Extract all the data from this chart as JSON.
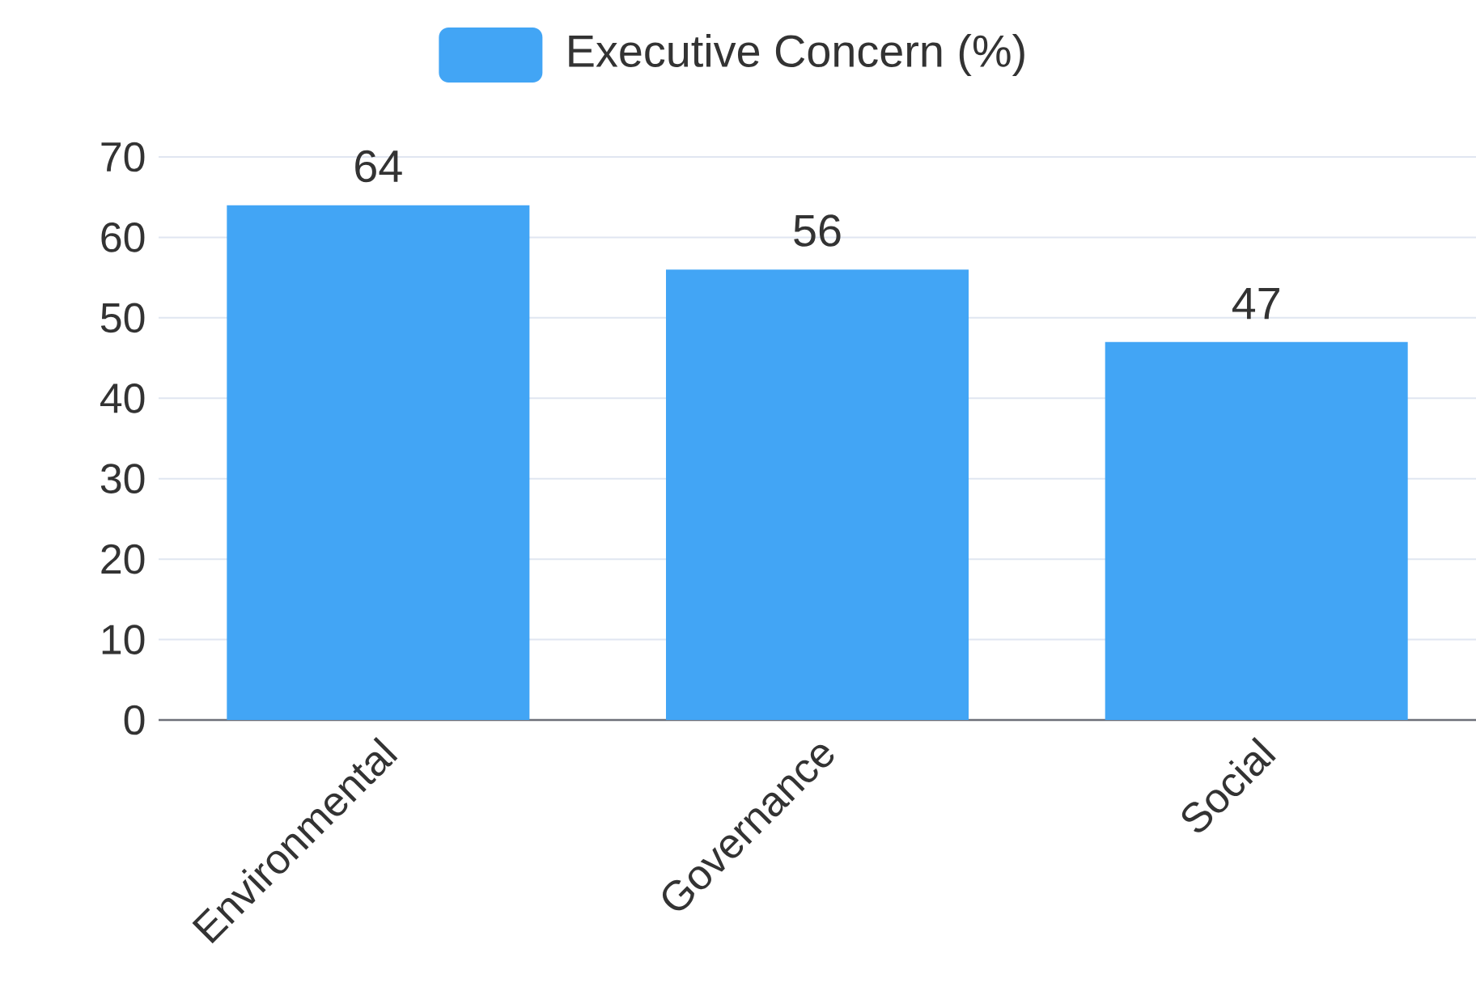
{
  "chart_data": {
    "type": "bar",
    "categories": [
      "Environmental",
      "Governance",
      "Social"
    ],
    "series": [
      {
        "name": "Executive Concern (%)",
        "color": "#42a5f5",
        "values": [
          64,
          56,
          47
        ]
      }
    ],
    "ylim": [
      0,
      70
    ],
    "yticks": [
      0,
      10,
      20,
      30,
      40,
      50,
      60,
      70
    ],
    "grid": "y",
    "legend": "top",
    "data_labels": true
  }
}
